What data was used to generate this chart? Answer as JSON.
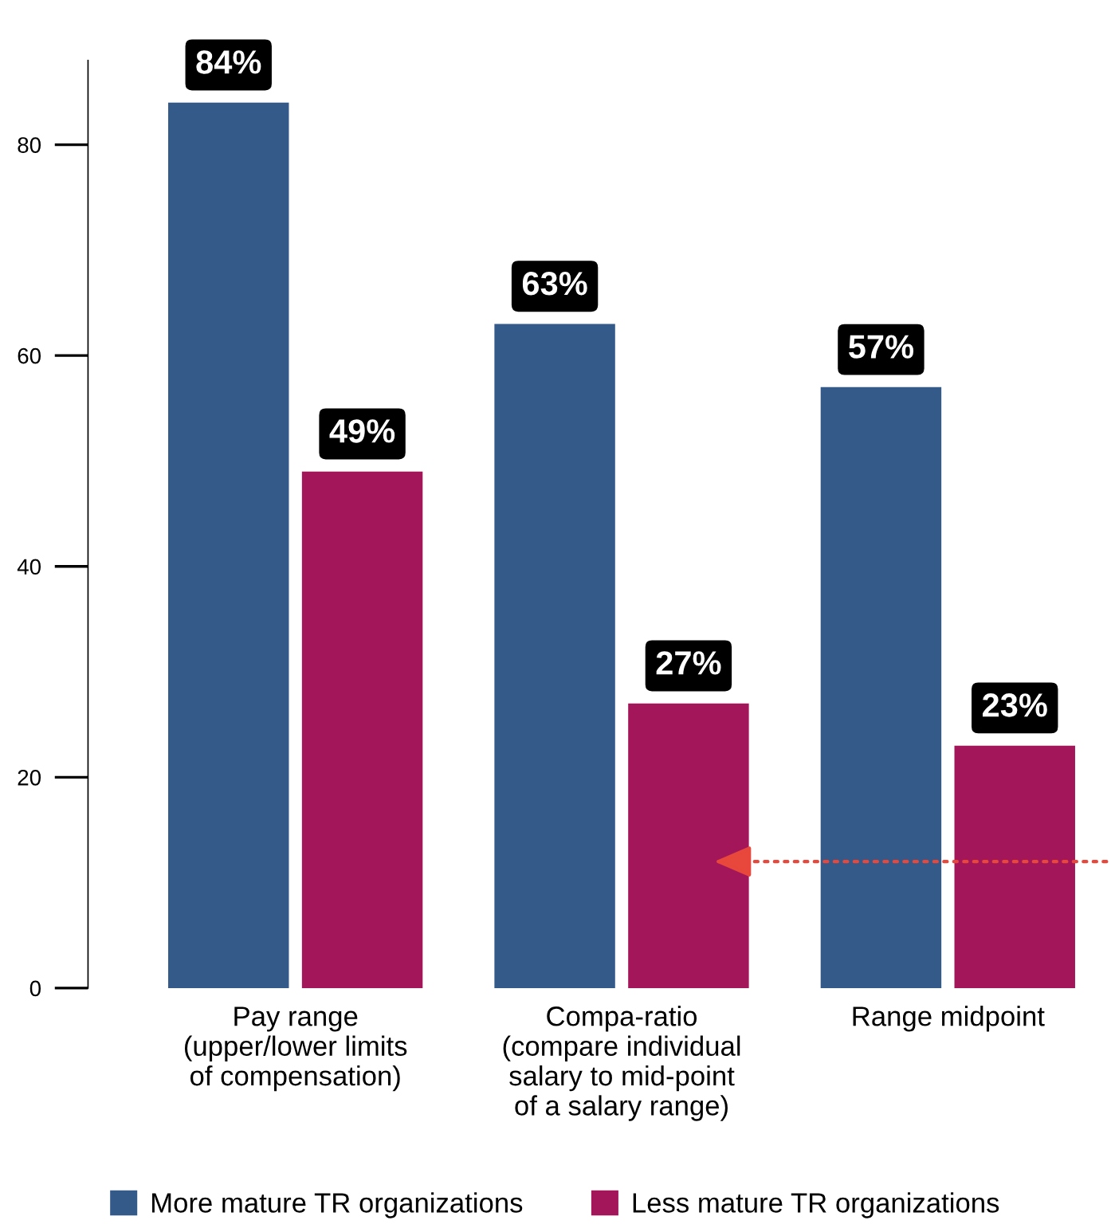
{
  "chart_data": {
    "type": "bar",
    "categories": [
      "Pay range\n(upper/lower limits\nof compensation)",
      "Compa-ratio\n(compare individual\nsalary to mid-point\nof a salary range)",
      "Range midpoint"
    ],
    "series": [
      {
        "name": "More mature TR organizations",
        "color": "#345a8a",
        "values": [
          84,
          63,
          57
        ],
        "value_labels": [
          "84%",
          "63%",
          "57%"
        ]
      },
      {
        "name": "Less mature TR organizations",
        "color": "#a3175a",
        "values": [
          49,
          27,
          23
        ],
        "value_labels": [
          "49%",
          "27%",
          "23%"
        ]
      }
    ],
    "ylim": [
      0,
      88
    ],
    "yticks": [
      0,
      20,
      40,
      60,
      80
    ],
    "grid": false,
    "legend": "bottom"
  }
}
